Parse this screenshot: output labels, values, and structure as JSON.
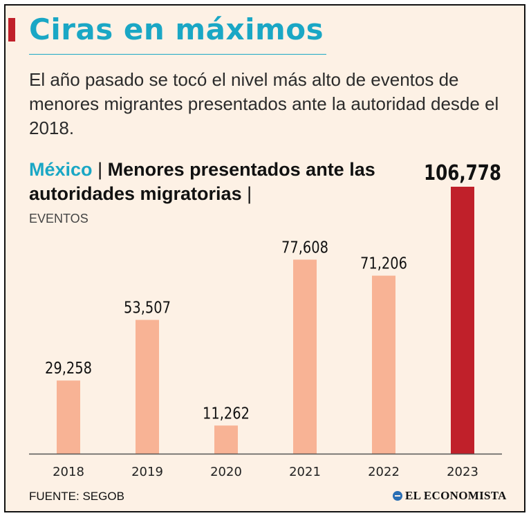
{
  "header": {
    "title": "Ciras en máximos",
    "subtitle": "El año pasado se tocó el nivel más alto de eventos de menores migrantes presentados ante la autoridad desde el 2018."
  },
  "chart_heading": {
    "place": "México",
    "separator": "|",
    "title": "Menores presentados ante las autoridades migratorias",
    "trailing_separator": "|",
    "units": "EVENTOS"
  },
  "chart_data": {
    "type": "bar",
    "title": "Menores presentados ante las autoridades migratorias",
    "categories": [
      "2018",
      "2019",
      "2020",
      "2021",
      "2022",
      "2023"
    ],
    "values": [
      29258,
      53507,
      11262,
      77608,
      71206,
      106778
    ],
    "value_labels": [
      "29,258",
      "53,507",
      "11,262",
      "77,608",
      "71,206",
      "106,778"
    ],
    "ylabel": "EVENTOS",
    "ylim": [
      0,
      106778
    ],
    "grid": false,
    "colors": {
      "default": "#f8b395",
      "highlight": "#c0202a",
      "highlight_category": "2023",
      "axis": "#555555"
    }
  },
  "footer": {
    "source": "FUENTE: SEGOB",
    "logo": "EL ECONOMISTA"
  }
}
